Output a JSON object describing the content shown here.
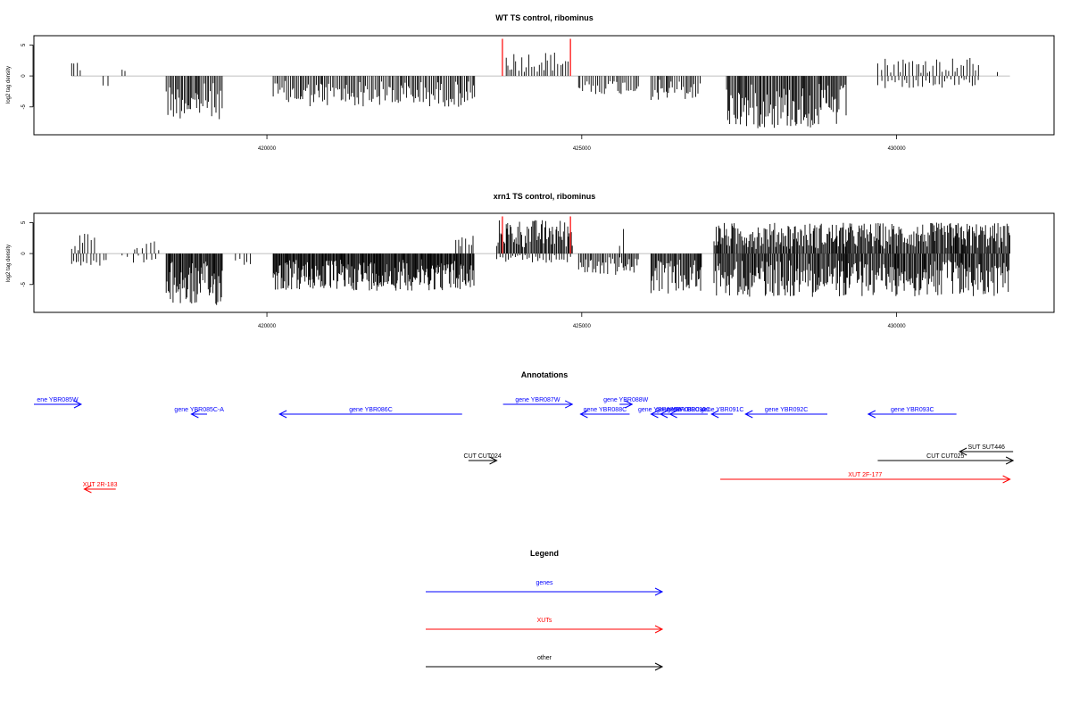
{
  "colors": {
    "genes": "#0000ff",
    "xuts": "#ff0000",
    "other": "#000000",
    "mark": "#ff0000",
    "baseline": "#aaaaaa"
  },
  "chart_data": [
    {
      "type": "bar",
      "title": "WT TS control, ribominus",
      "ylabel": "log2 tag density",
      "xlim": [
        416300,
        432500
      ],
      "ylim": [
        -9.5,
        6.5
      ],
      "xticks": [
        420000,
        425000,
        430000
      ],
      "xtick_labels": [
        "420000",
        "425000",
        "430000"
      ],
      "yticks": [
        5,
        0,
        -5
      ],
      "ytick_labels": [
        "5",
        "0",
        "-5"
      ],
      "marks": [
        423740,
        424820
      ],
      "regions": [
        {
          "start": 416900,
          "end": 417050,
          "sign": 1,
          "max": 2.8,
          "step": 40
        },
        {
          "start": 417400,
          "end": 417500,
          "sign": -1,
          "max": 2.0,
          "step": 60
        },
        {
          "start": 417700,
          "end": 417750,
          "sign": 1,
          "max": 1.2,
          "step": 60
        },
        {
          "start": 418400,
          "end": 419300,
          "sign": -1,
          "max": 7.0,
          "step": 22
        },
        {
          "start": 420100,
          "end": 423300,
          "sign": -1,
          "max": 5.0,
          "step": 24
        },
        {
          "start": 423800,
          "end": 424800,
          "sign": 1,
          "max": 4.0,
          "step": 40
        },
        {
          "start": 424950,
          "end": 425900,
          "sign": -1,
          "max": 3.0,
          "step": 32
        },
        {
          "start": 426100,
          "end": 426900,
          "sign": -1,
          "max": 4.0,
          "step": 28
        },
        {
          "start": 427300,
          "end": 429200,
          "sign": -1,
          "max": 8.5,
          "step": 18
        },
        {
          "start": 429700,
          "end": 431300,
          "sign": 1,
          "max": 3.0,
          "step": 50
        },
        {
          "start": 429700,
          "end": 431300,
          "sign": -1,
          "max": 2.0,
          "step": 50
        },
        {
          "start": 431600,
          "end": 431650,
          "sign": 1,
          "max": 1.5,
          "step": 60
        }
      ]
    },
    {
      "type": "bar",
      "title": "xrn1 TS control, ribominus",
      "ylabel": "log2 tag density",
      "xlim": [
        416300,
        432500
      ],
      "ylim": [
        -9.5,
        6.5
      ],
      "xticks": [
        420000,
        425000,
        430000
      ],
      "xtick_labels": [
        "420000",
        "425000",
        "430000"
      ],
      "yticks": [
        5,
        0,
        -5
      ],
      "ytick_labels": [
        "5",
        "0",
        "-5"
      ],
      "marks": [
        423740,
        424820
      ],
      "regions": [
        {
          "start": 416900,
          "end": 417300,
          "sign": 1,
          "max": 3.2,
          "step": 40
        },
        {
          "start": 416900,
          "end": 417500,
          "sign": -1,
          "max": 2.0,
          "step": 50
        },
        {
          "start": 417700,
          "end": 418300,
          "sign": -1,
          "max": 1.5,
          "step": 70
        },
        {
          "start": 417900,
          "end": 418300,
          "sign": 1,
          "max": 2.5,
          "step": 60
        },
        {
          "start": 418400,
          "end": 419300,
          "sign": -1,
          "max": 8.5,
          "step": 14
        },
        {
          "start": 419500,
          "end": 419800,
          "sign": -1,
          "max": 2.0,
          "step": 60
        },
        {
          "start": 420100,
          "end": 423300,
          "sign": -1,
          "max": 6.0,
          "step": 13
        },
        {
          "start": 423000,
          "end": 423300,
          "sign": 1,
          "max": 3.0,
          "step": 40
        },
        {
          "start": 423650,
          "end": 424850,
          "sign": 1,
          "max": 5.5,
          "step": 18
        },
        {
          "start": 423650,
          "end": 424850,
          "sign": -1,
          "max": 1.5,
          "step": 40
        },
        {
          "start": 424950,
          "end": 425900,
          "sign": -1,
          "max": 3.5,
          "step": 22
        },
        {
          "start": 425600,
          "end": 425700,
          "sign": 1,
          "max": 4.0,
          "step": 50
        },
        {
          "start": 426100,
          "end": 426900,
          "sign": -1,
          "max": 6.5,
          "step": 16
        },
        {
          "start": 427100,
          "end": 431800,
          "sign": 1,
          "max": 5.0,
          "step": 16
        },
        {
          "start": 427100,
          "end": 431800,
          "sign": -1,
          "max": 7.0,
          "step": 16
        }
      ]
    }
  ],
  "annotations": {
    "title": "Annotations",
    "items": [
      {
        "label": "ene YBR085W",
        "color": "genes",
        "dir": "right",
        "from": 416300,
        "to": 417050,
        "row": 0
      },
      {
        "label": "gene YBR085C-A",
        "color": "genes",
        "dir": "left",
        "from": 418800,
        "to": 419050,
        "row": 1
      },
      {
        "label": "gene YBR086C",
        "color": "genes",
        "dir": "left",
        "from": 420200,
        "to": 423100,
        "row": 1
      },
      {
        "label": "gene YBR087W",
        "color": "genes",
        "dir": "right",
        "from": 423750,
        "to": 424850,
        "row": 0
      },
      {
        "label": "gene YBR088W",
        "color": "genes",
        "dir": "right",
        "from": 425600,
        "to": 425800,
        "row": 0
      },
      {
        "label": "gene YBR088C",
        "color": "genes",
        "dir": "left",
        "from": 424980,
        "to": 425760,
        "row": 1
      },
      {
        "label": "gene YBR089W",
        "color": "genes",
        "dir": "left",
        "from": 426100,
        "to": 426400,
        "row": 1
      },
      {
        "label": "gene YBR089C-A",
        "color": "genes",
        "dir": "left",
        "from": 426250,
        "to": 426900,
        "row": 1
      },
      {
        "label": "gene YBR090C",
        "color": "genes",
        "dir": "left",
        "from": 426400,
        "to": 427000,
        "row": 1
      },
      {
        "label": "gene YBR091C",
        "color": "genes",
        "dir": "left",
        "from": 427060,
        "to": 427400,
        "row": 1
      },
      {
        "label": "gene YBR092C",
        "color": "genes",
        "dir": "left",
        "from": 427600,
        "to": 428900,
        "row": 1
      },
      {
        "label": "gene YBR093C",
        "color": "genes",
        "dir": "left",
        "from": 429550,
        "to": 430950,
        "row": 1
      },
      {
        "label": "SUT SUT446",
        "color": "other",
        "dir": "left",
        "from": 431000,
        "to": 431850,
        "row": 2
      },
      {
        "label": "CUT CUT024",
        "color": "other",
        "dir": "right",
        "from": 423200,
        "to": 423650,
        "row": 3
      },
      {
        "label": "CUT CUT025",
        "color": "other",
        "dir": "right",
        "from": 429700,
        "to": 431850,
        "row": 3
      },
      {
        "label": "XUT 2F-177",
        "color": "xuts",
        "dir": "right",
        "from": 427200,
        "to": 431800,
        "row": 4
      },
      {
        "label": "XUT 2R-183",
        "color": "xuts",
        "dir": "left",
        "from": 417100,
        "to": 417600,
        "row": 5
      }
    ]
  },
  "legend": {
    "title": "Legend",
    "items": [
      {
        "label": "genes",
        "color": "genes"
      },
      {
        "label": "XUTs",
        "color": "xuts"
      },
      {
        "label": "other",
        "color": "other"
      }
    ]
  }
}
